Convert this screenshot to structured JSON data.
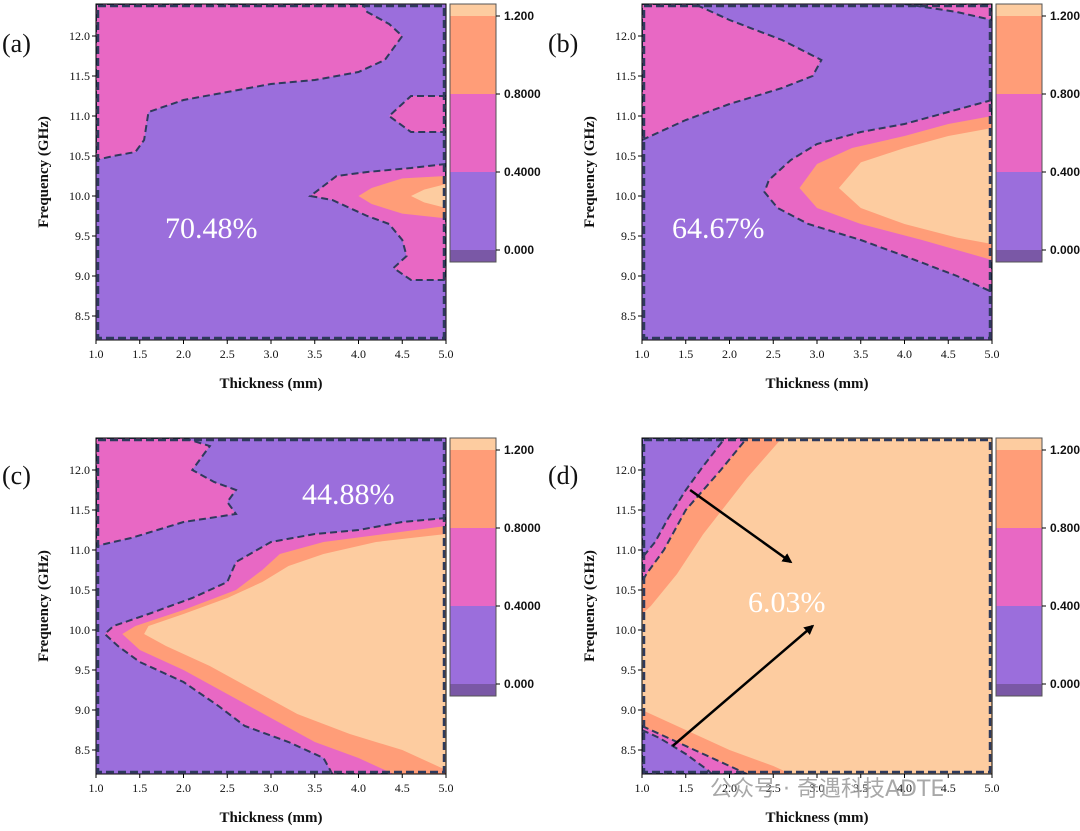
{
  "chart_data": [
    {
      "type": "heatmap",
      "panel": "(a)",
      "title": "",
      "xlabel": "Thickness (mm)",
      "ylabel": "Frequency (GHz)",
      "xlim": [
        1.0,
        5.0
      ],
      "ylim": [
        8.2,
        12.4
      ],
      "x_ticks": [
        "1.0",
        "1.5",
        "2.0",
        "2.5",
        "3.0",
        "3.5",
        "4.0",
        "4.5",
        "5.0"
      ],
      "y_ticks": [
        "8.5",
        "9.0",
        "9.5",
        "10.0",
        "10.5",
        "11.0",
        "11.5",
        "12.0"
      ],
      "colorbar_ticks": [
        "0.000",
        "0.4000",
        "0.8000",
        "1.200"
      ],
      "annotation": "70.48%",
      "regions": [
        {
          "level": "0.0-0.4",
          "points": [
            [
              1.0,
              8.2
            ],
            [
              5.0,
              8.2
            ],
            [
              5.0,
              12.4
            ],
            [
              1.0,
              12.4
            ]
          ]
        },
        {
          "level": "0.4-0.8",
          "points": [
            [
              1.0,
              12.4
            ],
            [
              4.05,
              12.4
            ],
            [
              4.1,
              12.3
            ],
            [
              4.35,
              12.15
            ],
            [
              4.5,
              12.0
            ],
            [
              4.3,
              11.7
            ],
            [
              4.0,
              11.55
            ],
            [
              3.5,
              11.45
            ],
            [
              3.0,
              11.4
            ],
            [
              2.5,
              11.3
            ],
            [
              2.0,
              11.2
            ],
            [
              1.6,
              11.05
            ],
            [
              1.55,
              10.7
            ],
            [
              1.45,
              10.55
            ],
            [
              1.2,
              10.5
            ],
            [
              1.0,
              10.45
            ]
          ]
        },
        {
          "level": "0.4-0.8",
          "points": [
            [
              5.0,
              11.25
            ],
            [
              4.6,
              11.25
            ],
            [
              4.35,
              11.0
            ],
            [
              4.6,
              10.8
            ],
            [
              5.0,
              10.8
            ]
          ]
        },
        {
          "level": "0.4-0.8",
          "points": [
            [
              5.0,
              10.4
            ],
            [
              4.6,
              10.35
            ],
            [
              4.1,
              10.3
            ],
            [
              3.75,
              10.25
            ],
            [
              3.45,
              10.0
            ],
            [
              3.7,
              9.95
            ],
            [
              4.1,
              9.75
            ],
            [
              4.35,
              9.65
            ],
            [
              4.5,
              9.45
            ],
            [
              4.55,
              9.25
            ],
            [
              4.4,
              9.1
            ],
            [
              4.6,
              8.95
            ],
            [
              5.0,
              8.95
            ]
          ]
        },
        {
          "level": "0.8-1.2",
          "points": [
            [
              5.0,
              10.25
            ],
            [
              4.5,
              10.22
            ],
            [
              4.15,
              10.1
            ],
            [
              4.0,
              10.0
            ],
            [
              4.15,
              9.9
            ],
            [
              4.5,
              9.78
            ],
            [
              5.0,
              9.72
            ]
          ]
        },
        {
          "level": "1.2+",
          "points": [
            [
              5.0,
              10.15
            ],
            [
              4.75,
              10.08
            ],
            [
              4.6,
              10.0
            ],
            [
              4.75,
              9.92
            ],
            [
              5.0,
              9.85
            ]
          ]
        }
      ]
    },
    {
      "type": "heatmap",
      "panel": "(b)",
      "title": "",
      "xlabel": "Thickness (mm)",
      "ylabel": "Frequency (GHz)",
      "xlim": [
        1.0,
        5.0
      ],
      "ylim": [
        8.2,
        12.4
      ],
      "x_ticks": [
        "1.0",
        "1.5",
        "2.0",
        "2.5",
        "3.0",
        "3.5",
        "4.0",
        "4.5",
        "5.0"
      ],
      "y_ticks": [
        "8.5",
        "9.0",
        "9.5",
        "10.0",
        "10.5",
        "11.0",
        "11.5",
        "12.0"
      ],
      "colorbar_ticks": [
        "0.000",
        "0.4000",
        "0.8000",
        "1.200"
      ],
      "annotation": "64.67%",
      "regions": [
        {
          "level": "0.0-0.4",
          "points": [
            [
              1.0,
              8.2
            ],
            [
              5.0,
              8.2
            ],
            [
              5.0,
              12.4
            ],
            [
              1.0,
              12.4
            ]
          ]
        },
        {
          "level": "0.4-0.8",
          "points": [
            [
              1.0,
              12.4
            ],
            [
              1.6,
              12.4
            ],
            [
              2.0,
              12.2
            ],
            [
              2.6,
              11.95
            ],
            [
              3.05,
              11.7
            ],
            [
              2.95,
              11.5
            ],
            [
              2.6,
              11.35
            ],
            [
              2.0,
              11.15
            ],
            [
              1.5,
              10.95
            ],
            [
              1.0,
              10.7
            ]
          ]
        },
        {
          "level": "0.4-0.8",
          "points": [
            [
              4.0,
              12.4
            ],
            [
              5.0,
              12.4
            ],
            [
              5.0,
              12.2
            ],
            [
              4.6,
              12.3
            ]
          ]
        },
        {
          "level": "0.4-0.8",
          "points": [
            [
              5.0,
              11.2
            ],
            [
              4.5,
              11.05
            ],
            [
              4.0,
              10.9
            ],
            [
              3.5,
              10.8
            ],
            [
              3.0,
              10.65
            ],
            [
              2.7,
              10.45
            ],
            [
              2.45,
              10.2
            ],
            [
              2.4,
              10.05
            ],
            [
              2.55,
              9.85
            ],
            [
              2.9,
              9.65
            ],
            [
              3.5,
              9.45
            ],
            [
              4.0,
              9.25
            ],
            [
              4.6,
              9.0
            ],
            [
              5.0,
              8.8
            ]
          ]
        },
        {
          "level": "0.8-1.2",
          "points": [
            [
              5.0,
              11.0
            ],
            [
              4.5,
              10.9
            ],
            [
              4.0,
              10.75
            ],
            [
              3.4,
              10.6
            ],
            [
              3.0,
              10.4
            ],
            [
              2.8,
              10.1
            ],
            [
              3.0,
              9.85
            ],
            [
              3.5,
              9.65
            ],
            [
              4.2,
              9.45
            ],
            [
              5.0,
              9.2
            ]
          ]
        },
        {
          "level": "1.2+",
          "points": [
            [
              5.0,
              10.85
            ],
            [
              4.5,
              10.75
            ],
            [
              4.0,
              10.6
            ],
            [
              3.5,
              10.42
            ],
            [
              3.25,
              10.1
            ],
            [
              3.5,
              9.85
            ],
            [
              4.0,
              9.65
            ],
            [
              4.6,
              9.48
            ],
            [
              5.0,
              9.4
            ]
          ]
        }
      ]
    },
    {
      "type": "heatmap",
      "panel": "(c)",
      "title": "",
      "xlabel": "Thickness (mm)",
      "ylabel": "Frequency (GHz)",
      "xlim": [
        1.0,
        5.0
      ],
      "ylim": [
        8.2,
        12.4
      ],
      "x_ticks": [
        "1.0",
        "1.5",
        "2.0",
        "2.5",
        "3.0",
        "3.5",
        "4.0",
        "4.5",
        "5.0"
      ],
      "y_ticks": [
        "8.5",
        "9.0",
        "9.5",
        "10.0",
        "10.5",
        "11.0",
        "11.5",
        "12.0"
      ],
      "colorbar_ticks": [
        "0.000",
        "0.4000",
        "0.8000",
        "1.200"
      ],
      "annotation": "44.88%",
      "regions": [
        {
          "level": "0.0-0.4",
          "points": [
            [
              1.0,
              8.2
            ],
            [
              5.0,
              8.2
            ],
            [
              5.0,
              12.4
            ],
            [
              1.0,
              12.4
            ]
          ]
        },
        {
          "level": "0.4-0.8",
          "points": [
            [
              1.0,
              12.4
            ],
            [
              2.0,
              12.4
            ],
            [
              2.3,
              12.3
            ],
            [
              2.1,
              12.0
            ],
            [
              2.35,
              11.85
            ],
            [
              2.6,
              11.75
            ],
            [
              2.5,
              11.6
            ],
            [
              2.6,
              11.45
            ],
            [
              2.3,
              11.4
            ],
            [
              2.0,
              11.35
            ],
            [
              1.7,
              11.25
            ],
            [
              1.4,
              11.15
            ],
            [
              1.0,
              11.05
            ]
          ]
        },
        {
          "level": "0.4-0.8",
          "points": [
            [
              5.0,
              11.4
            ],
            [
              4.5,
              11.35
            ],
            [
              4.0,
              11.25
            ],
            [
              3.5,
              11.2
            ],
            [
              3.0,
              11.1
            ],
            [
              2.6,
              10.85
            ],
            [
              2.5,
              10.6
            ],
            [
              2.1,
              10.4
            ],
            [
              1.6,
              10.2
            ],
            [
              1.2,
              10.05
            ],
            [
              1.1,
              9.95
            ],
            [
              1.25,
              9.8
            ],
            [
              1.5,
              9.6
            ],
            [
              2.0,
              9.35
            ],
            [
              2.4,
              9.05
            ],
            [
              2.7,
              8.8
            ],
            [
              3.2,
              8.6
            ],
            [
              3.6,
              8.4
            ],
            [
              3.7,
              8.2
            ],
            [
              5.0,
              8.2
            ]
          ]
        },
        {
          "level": "0.8-1.2",
          "points": [
            [
              5.0,
              11.3
            ],
            [
              4.3,
              11.2
            ],
            [
              3.6,
              11.1
            ],
            [
              3.1,
              10.95
            ],
            [
              2.9,
              10.75
            ],
            [
              2.6,
              10.5
            ],
            [
              2.0,
              10.25
            ],
            [
              1.45,
              10.05
            ],
            [
              1.3,
              9.95
            ],
            [
              1.5,
              9.75
            ],
            [
              2.0,
              9.5
            ],
            [
              2.5,
              9.2
            ],
            [
              3.0,
              8.9
            ],
            [
              3.5,
              8.6
            ],
            [
              4.0,
              8.4
            ],
            [
              4.4,
              8.2
            ],
            [
              5.0,
              8.2
            ]
          ]
        },
        {
          "level": "1.2+",
          "points": [
            [
              5.0,
              11.2
            ],
            [
              4.2,
              11.1
            ],
            [
              3.6,
              10.95
            ],
            [
              3.2,
              10.8
            ],
            [
              2.9,
              10.6
            ],
            [
              2.5,
              10.4
            ],
            [
              2.0,
              10.2
            ],
            [
              1.6,
              10.05
            ],
            [
              1.55,
              9.95
            ],
            [
              1.8,
              9.8
            ],
            [
              2.3,
              9.55
            ],
            [
              2.8,
              9.25
            ],
            [
              3.3,
              8.95
            ],
            [
              3.9,
              8.7
            ],
            [
              4.5,
              8.5
            ],
            [
              4.9,
              8.3
            ],
            [
              5.0,
              8.25
            ]
          ]
        }
      ]
    },
    {
      "type": "heatmap",
      "panel": "(d)",
      "title": "",
      "xlabel": "Thickness (mm)",
      "ylabel": "Frequency (GHz)",
      "xlim": [
        1.0,
        5.0
      ],
      "ylim": [
        8.2,
        12.4
      ],
      "x_ticks": [
        "1.0",
        "1.5",
        "2.0",
        "2.5",
        "3.0",
        "3.5",
        "4.0",
        "4.5",
        "5.0"
      ],
      "y_ticks": [
        "8.5",
        "9.0",
        "9.5",
        "10.0",
        "10.5",
        "11.0",
        "11.5",
        "12.0"
      ],
      "colorbar_ticks": [
        "0.000",
        "0.4000",
        "0.8000",
        "1.200"
      ],
      "annotation": "6.03%",
      "regions": [
        {
          "level": "1.2+",
          "points": [
            [
              1.0,
              8.2
            ],
            [
              5.0,
              8.2
            ],
            [
              5.0,
              12.4
            ],
            [
              1.0,
              12.4
            ]
          ]
        },
        {
          "level": "0.8-1.2",
          "points": [
            [
              1.0,
              12.4
            ],
            [
              2.6,
              12.4
            ],
            [
              2.2,
              11.9
            ],
            [
              1.7,
              11.2
            ],
            [
              1.4,
              10.7
            ],
            [
              1.1,
              10.3
            ],
            [
              1.0,
              10.2
            ]
          ]
        },
        {
          "level": "0.4-0.8",
          "points": [
            [
              1.0,
              12.4
            ],
            [
              2.2,
              12.4
            ],
            [
              1.9,
              12.0
            ],
            [
              1.5,
              11.5
            ],
            [
              1.25,
              11.0
            ],
            [
              1.05,
              10.7
            ],
            [
              1.0,
              10.6
            ]
          ]
        },
        {
          "level": "0.0-0.4",
          "points": [
            [
              1.0,
              12.4
            ],
            [
              1.95,
              12.4
            ],
            [
              1.7,
              12.05
            ],
            [
              1.5,
              11.75
            ],
            [
              1.3,
              11.4
            ],
            [
              1.15,
              11.1
            ],
            [
              1.0,
              10.9
            ]
          ]
        },
        {
          "level": "0.8-1.2",
          "points": [
            [
              1.0,
              9.0
            ],
            [
              1.5,
              8.75
            ],
            [
              2.0,
              8.5
            ],
            [
              2.5,
              8.3
            ],
            [
              2.7,
              8.2
            ],
            [
              1.0,
              8.2
            ]
          ]
        },
        {
          "level": "0.4-0.8",
          "points": [
            [
              1.0,
              8.8
            ],
            [
              1.3,
              8.65
            ],
            [
              1.7,
              8.45
            ],
            [
              2.1,
              8.25
            ],
            [
              2.2,
              8.2
            ],
            [
              1.0,
              8.2
            ]
          ]
        },
        {
          "level": "0.0-0.4",
          "points": [
            [
              1.0,
              8.75
            ],
            [
              1.2,
              8.65
            ],
            [
              1.5,
              8.45
            ],
            [
              1.75,
              8.25
            ],
            [
              1.8,
              8.2
            ],
            [
              1.0,
              8.2
            ]
          ]
        }
      ],
      "arrows": [
        {
          "from": [
            1.55,
            11.75
          ],
          "to": [
            2.7,
            10.85
          ]
        },
        {
          "from": [
            1.35,
            8.55
          ],
          "to": [
            2.95,
            10.05
          ]
        }
      ]
    }
  ],
  "colors": {
    "level_0": "#7a58a6",
    "level_1": "#9b6edc",
    "level_2": "#e868c4",
    "level_3": "#ff9d78",
    "level_4": "#fdcca0",
    "boundary": "#2e3a5c"
  },
  "watermark": "公众号 · 奇遇科技ADTE"
}
